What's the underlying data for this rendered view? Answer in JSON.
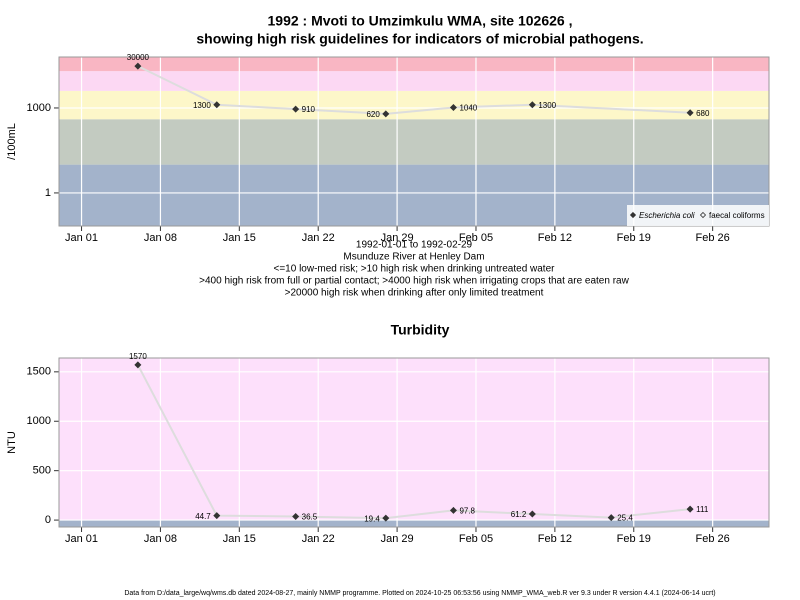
{
  "chart_data": [
    {
      "type": "line",
      "log_y": true,
      "title": [
        "1992 : Mvoti to Umzimkulu WMA, site 102626 ,",
        "showing high risk guidelines for indicators of microbial pathogens."
      ],
      "y_label": "/100mL",
      "notes": [
        "1992-01-01 to 1992-02-29",
        "Msunduze River at Henley Dam",
        "<=10 low-med risk; >10 high risk when drinking untreated water",
        ">400 high risk from full or partial contact; >4000 high risk when irrigating crops that are eaten raw",
        ">20000 high risk when drinking after only limited treatment"
      ],
      "x": [
        "1992-01-06",
        "1992-01-13",
        "1992-01-20",
        "1992-01-28",
        "1992-02-03",
        "1992-02-10",
        "1992-02-24"
      ],
      "series": [
        {
          "name": "Escherichia coli",
          "color": "#333333",
          "values": [
            30000,
            1300,
            910,
            620,
            1040,
            1300,
            680
          ]
        },
        {
          "name": "faecal coliforms",
          "color": "#333333",
          "values": [
            null,
            null,
            null,
            null,
            null,
            null,
            null
          ]
        }
      ],
      "line_color": "#dddddd",
      "xlim": [
        "1991-12-30",
        "1992-03-02"
      ],
      "xticks": [
        {
          "value": "1992-01-01",
          "label": "Jan 01"
        },
        {
          "value": "1992-01-08",
          "label": "Jan 08"
        },
        {
          "value": "1992-01-15",
          "label": "Jan 15"
        },
        {
          "value": "1992-01-22",
          "label": "Jan 22"
        },
        {
          "value": "1992-01-29",
          "label": "Jan 29"
        },
        {
          "value": "1992-02-05",
          "label": "Feb 05"
        },
        {
          "value": "1992-02-12",
          "label": "Feb 12"
        },
        {
          "value": "1992-02-19",
          "label": "Feb 19"
        },
        {
          "value": "1992-02-26",
          "label": "Feb 26"
        }
      ],
      "ylim": [
        0.068,
        63000
      ],
      "yticks": [
        1,
        1000
      ],
      "bands": [
        {
          "max": 10,
          "color": "#a3b3cb"
        },
        {
          "max": 400,
          "color": "#c3cbc1"
        },
        {
          "max": 4000,
          "color": "#fdf7c9"
        },
        {
          "max": 20000,
          "color": "#fcd8f3"
        },
        {
          "color": "#f9b6c3"
        }
      ],
      "grid": true,
      "legend": "bottom-right"
    },
    {
      "type": "line",
      "log_y": false,
      "title": [
        "Turbidity"
      ],
      "y_label": "NTU",
      "x": [
        "1992-01-06",
        "1992-01-13",
        "1992-01-20",
        "1992-01-28",
        "1992-02-03",
        "1992-02-10",
        "1992-02-17",
        "1992-02-24"
      ],
      "values": [
        1570,
        44.7,
        36.5,
        19.4,
        97.8,
        61.2,
        25.4,
        111
      ],
      "color": "#333333",
      "line_color": "#dddddd",
      "xlim": [
        "1991-12-30",
        "1992-03-02"
      ],
      "xticks": [
        {
          "value": "1992-01-01",
          "label": "Jan 01"
        },
        {
          "value": "1992-01-08",
          "label": "Jan 08"
        },
        {
          "value": "1992-01-15",
          "label": "Jan 15"
        },
        {
          "value": "1992-01-22",
          "label": "Jan 22"
        },
        {
          "value": "1992-01-29",
          "label": "Jan 29"
        },
        {
          "value": "1992-02-05",
          "label": "Feb 05"
        },
        {
          "value": "1992-02-12",
          "label": "Feb 12"
        },
        {
          "value": "1992-02-19",
          "label": "Feb 19"
        },
        {
          "value": "1992-02-26",
          "label": "Feb 26"
        }
      ],
      "ylim": [
        -70,
        1640
      ],
      "yticks": [
        0,
        500,
        1000,
        1500
      ],
      "bands": [
        {
          "max": 1,
          "color": "#a3b3cb"
        },
        {
          "color": "#fde0fb"
        }
      ],
      "grid": true
    }
  ],
  "footer": "Data from D:/data_large/wq/wms.db dated 2024-08-27, mainly NMMP programme. Plotted on 2024-10-25 06:53:56 using NMMP_WMA_web.R ver 9.3 under R version 4.4.1 (2024-06-14 ucrt)"
}
